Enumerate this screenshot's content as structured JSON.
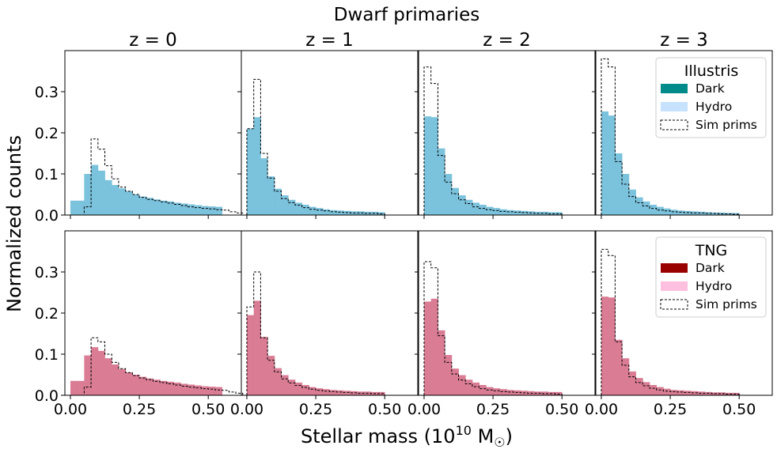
{
  "figure": {
    "suptitle": "Dwarf primaries",
    "xlabel": "Stellar mass (10",
    "xlabel_exp": "10",
    "xlabel_unit": " M",
    "xlabel_sub": "☉",
    "xlabel_close": ")",
    "ylabel": "Normalized counts"
  },
  "columns": [
    "z = 0",
    "z = 1",
    "z = 2",
    "z = 3"
  ],
  "colors": {
    "illustris_dark": "#008b8b",
    "illustris_hydro": "#c6e2ff",
    "illustris_overlap": "#7bc2dc",
    "tng_dark": "#990000",
    "tng_hydro": "#ffc0e0",
    "tng_overlap": "#d97c94"
  },
  "legends": [
    {
      "title": "Illustris",
      "entries": [
        "Dark",
        "Hydro",
        "Sim prims"
      ]
    },
    {
      "title": "TNG",
      "entries": [
        "Dark",
        "Hydro",
        "Sim prims"
      ]
    }
  ],
  "axes": {
    "xticks": [
      "0.00",
      "0.25",
      "0.50"
    ],
    "yticks": [
      "0.0",
      "0.1",
      "0.2",
      "0.3"
    ]
  },
  "chart_data": {
    "type": "histogram",
    "title": "Dwarf primaries",
    "xlabel": "Stellar mass (10^10 M_sun)",
    "ylabel": "Normalized counts",
    "xlim": [
      -0.02,
      0.62
    ],
    "ylim": [
      0,
      0.4
    ],
    "bin_width": 0.025,
    "rows": [
      "Illustris",
      "TNG"
    ],
    "columns": [
      "z = 0",
      "z = 1",
      "z = 2",
      "z = 3"
    ],
    "panels": [
      {
        "row": 0,
        "col": 0,
        "filled": [
          0.035,
          0.035,
          0.1,
          0.122,
          0.108,
          0.085,
          0.073,
          0.065,
          0.058,
          0.05,
          0.045,
          0.042,
          0.038,
          0.035,
          0.033,
          0.03,
          0.028,
          0.026,
          0.024,
          0.022,
          0.021,
          0.02
        ],
        "sim": [
          0,
          0,
          0.02,
          0.185,
          0.16,
          0.12,
          0.088,
          0.068,
          0.058,
          0.05,
          0.043,
          0.038,
          0.035,
          0.032,
          0.029,
          0.026,
          0.023,
          0.02,
          0.018,
          0.016,
          0.015,
          0.013,
          0.012,
          0.008,
          0.005
        ]
      },
      {
        "row": 0,
        "col": 1,
        "filled": [
          0.21,
          0.238,
          0.138,
          0.094,
          0.064,
          0.048,
          0.037,
          0.03,
          0.025,
          0.02,
          0.017,
          0.014,
          0.012,
          0.011,
          0.01,
          0.009,
          0.009,
          0.008,
          0.008,
          0.007
        ],
        "sim": [
          0.21,
          0.33,
          0.15,
          0.09,
          0.058,
          0.04,
          0.03,
          0.024,
          0.018,
          0.014,
          0.012,
          0.01,
          0.008,
          0.007,
          0.006,
          0.005,
          0.005,
          0.004,
          0.004,
          0.003
        ]
      },
      {
        "row": 0,
        "col": 2,
        "filled": [
          0.24,
          0.238,
          0.162,
          0.1,
          0.066,
          0.048,
          0.037,
          0.03,
          0.025,
          0.02,
          0.017,
          0.014,
          0.012,
          0.011,
          0.01,
          0.009,
          0.008,
          0.008,
          0.007,
          0.007
        ],
        "sim": [
          0.36,
          0.32,
          0.145,
          0.08,
          0.052,
          0.037,
          0.028,
          0.02,
          0.016,
          0.013,
          0.011,
          0.009,
          0.008,
          0.007,
          0.006,
          0.005,
          0.004,
          0.004,
          0.003,
          0.003
        ]
      },
      {
        "row": 0,
        "col": 3,
        "filled": [
          0.252,
          0.242,
          0.15,
          0.1,
          0.062,
          0.043,
          0.033,
          0.025,
          0.02,
          0.016,
          0.013,
          0.011,
          0.01,
          0.009,
          0.008,
          0.007,
          0.006,
          0.006,
          0.005,
          0.005
        ],
        "sim": [
          0.38,
          0.36,
          0.13,
          0.075,
          0.045,
          0.03,
          0.022,
          0.016,
          0.012,
          0.01,
          0.008,
          0.007,
          0.006,
          0.005,
          0.005,
          0.004,
          0.004,
          0.003,
          0.003,
          0.002
        ]
      },
      {
        "row": 1,
        "col": 0,
        "filled": [
          0.035,
          0.035,
          0.097,
          0.117,
          0.108,
          0.09,
          0.075,
          0.064,
          0.056,
          0.05,
          0.045,
          0.041,
          0.038,
          0.035,
          0.033,
          0.031,
          0.028,
          0.026,
          0.024,
          0.022,
          0.021,
          0.02
        ],
        "sim": [
          0,
          0,
          0.02,
          0.14,
          0.13,
          0.1,
          0.08,
          0.065,
          0.055,
          0.048,
          0.042,
          0.038,
          0.034,
          0.031,
          0.028,
          0.025,
          0.022,
          0.02,
          0.018,
          0.016,
          0.015,
          0.013,
          0.012,
          0.008,
          0.005
        ]
      },
      {
        "row": 1,
        "col": 1,
        "filled": [
          0.195,
          0.23,
          0.142,
          0.096,
          0.066,
          0.049,
          0.038,
          0.031,
          0.025,
          0.02,
          0.017,
          0.015,
          0.013,
          0.012,
          0.011,
          0.01,
          0.009,
          0.009,
          0.008,
          0.008
        ],
        "sim": [
          0.215,
          0.3,
          0.14,
          0.085,
          0.057,
          0.04,
          0.03,
          0.024,
          0.019,
          0.015,
          0.012,
          0.01,
          0.009,
          0.008,
          0.007,
          0.006,
          0.005,
          0.005,
          0.004,
          0.004
        ]
      },
      {
        "row": 1,
        "col": 2,
        "filled": [
          0.228,
          0.235,
          0.158,
          0.098,
          0.065,
          0.049,
          0.038,
          0.031,
          0.025,
          0.02,
          0.017,
          0.015,
          0.013,
          0.012,
          0.011,
          0.01,
          0.009,
          0.009,
          0.008,
          0.008
        ],
        "sim": [
          0.325,
          0.31,
          0.145,
          0.08,
          0.052,
          0.037,
          0.028,
          0.021,
          0.016,
          0.013,
          0.011,
          0.009,
          0.008,
          0.007,
          0.006,
          0.005,
          0.005,
          0.004,
          0.004,
          0.003
        ]
      },
      {
        "row": 1,
        "col": 3,
        "filled": [
          0.24,
          0.238,
          0.135,
          0.09,
          0.058,
          0.042,
          0.032,
          0.025,
          0.02,
          0.016,
          0.013,
          0.012,
          0.011,
          0.01,
          0.009,
          0.008,
          0.007,
          0.007,
          0.006,
          0.006
        ],
        "sim": [
          0.355,
          0.34,
          0.13,
          0.073,
          0.045,
          0.031,
          0.023,
          0.017,
          0.013,
          0.01,
          0.009,
          0.008,
          0.007,
          0.006,
          0.005,
          0.005,
          0.004,
          0.004,
          0.003,
          0.003
        ]
      }
    ]
  }
}
